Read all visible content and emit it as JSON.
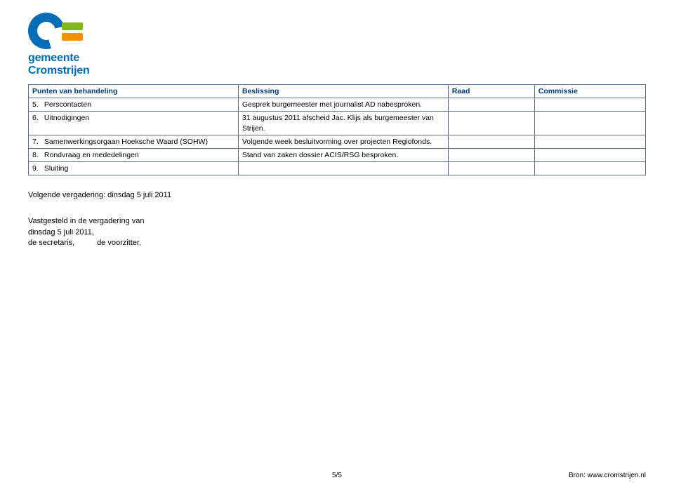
{
  "logo": {
    "line1": "gemeente",
    "line2": "Cromstrijen",
    "colors": {
      "blue": "#006db6",
      "orange": "#f39200",
      "green": "#83b81a"
    }
  },
  "table": {
    "border_color": "#5c6f92",
    "header_color": "#003a7d",
    "columns": [
      "Punten van behandeling",
      "Beslissing",
      "Raad",
      "Commissie"
    ],
    "rows": [
      {
        "n": "5.",
        "pt": "Perscontacten",
        "bs": "Gesprek burgemeester met journalist AD nabesproken."
      },
      {
        "n": "6.",
        "pt": "Uitnodigingen",
        "bs": "31 augustus 2011 afscheid Jac. Klijs als burgemeester van Strijen."
      },
      {
        "n": "7.",
        "pt": "Samenwerkingsorgaan Hoeksche Waard (SOHW)",
        "bs": "Volgende week besluitvorming over projecten Regiofonds."
      },
      {
        "n": "8.",
        "pt": "Rondvraag en mededelingen",
        "bs": "Stand van zaken dossier ACIS/RSG besproken."
      },
      {
        "n": "9.",
        "pt": "Sluiting",
        "bs": ""
      }
    ]
  },
  "next_meeting": "Volgende vergadering: dinsdag 5 juli 2011",
  "signoff": {
    "line1": "Vastgesteld in de vergadering van",
    "line2": "dinsdag 5 juli 2011,",
    "secretary_label": "de secretaris,",
    "chair_label": "de voorzitter,"
  },
  "footer": {
    "page": "5/5",
    "source": "Bron: www.cromstrijen.nl"
  }
}
